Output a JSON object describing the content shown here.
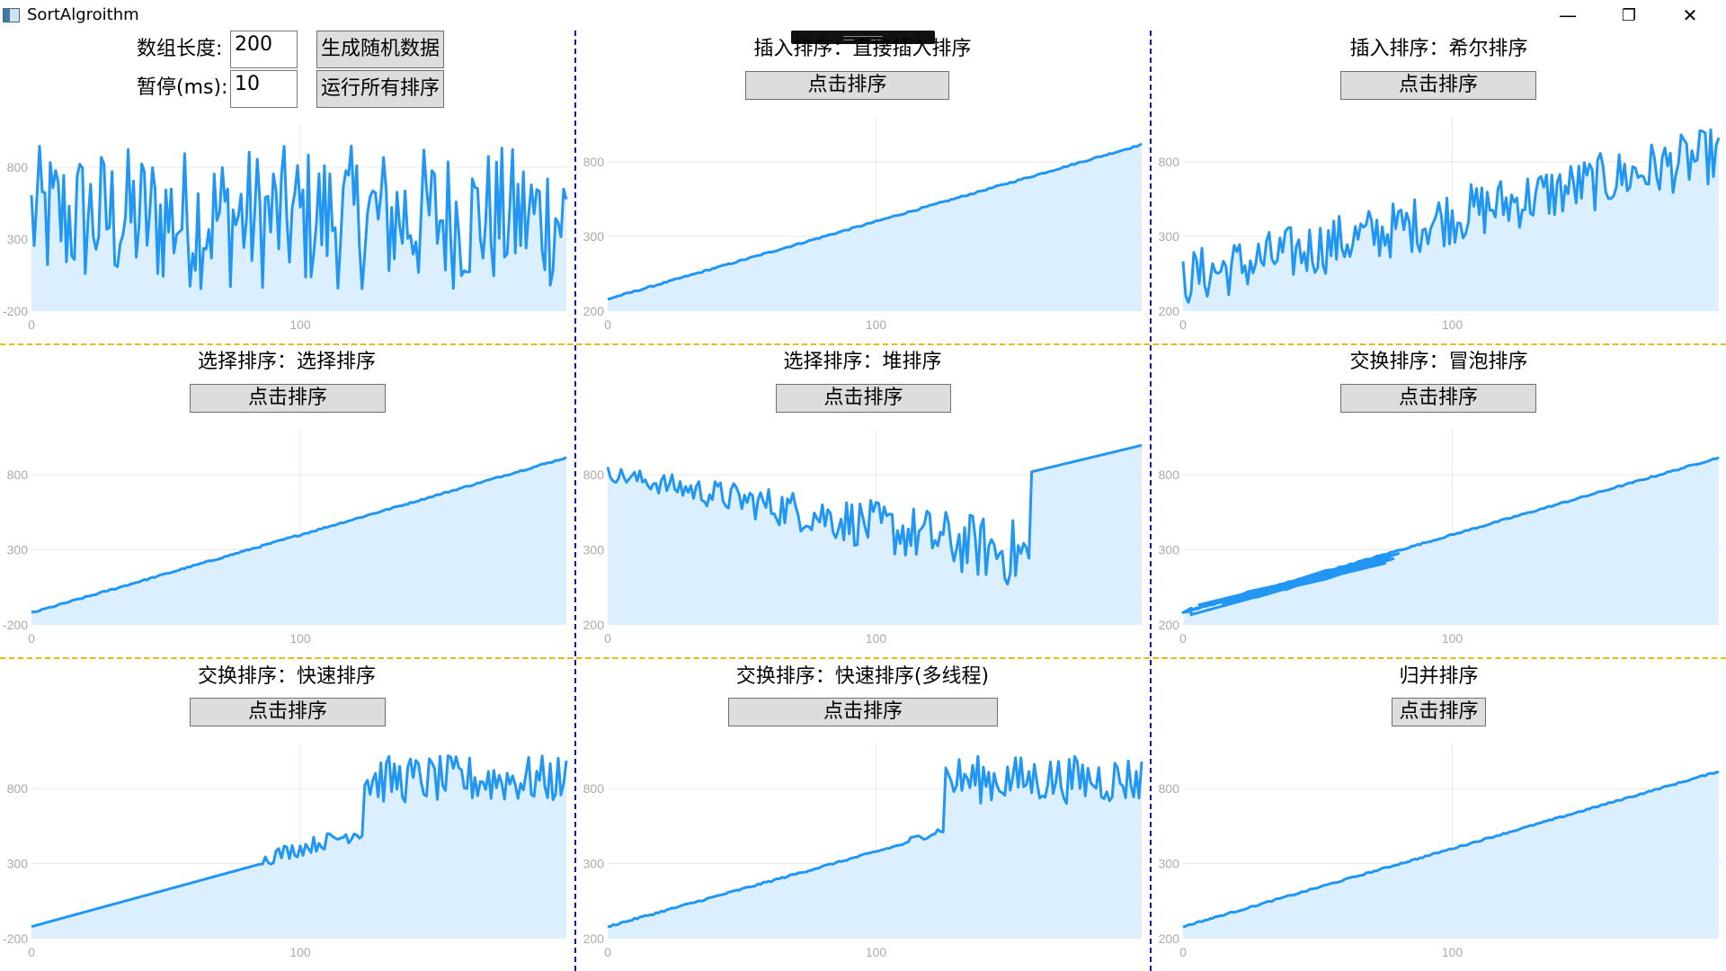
{
  "window": {
    "title": "SortAlgroithm",
    "minimize": "—",
    "restore": "❐",
    "close": "✕"
  },
  "controls": {
    "array_length_label": "数组长度:",
    "array_length_value": "200",
    "pause_label": "暂停(ms):",
    "pause_value": "10",
    "generate_button": "生成随机数据",
    "run_all_button": "运行所有排序"
  },
  "sort_button_label": "点击排序",
  "panels": [
    {
      "id": "random",
      "title": ""
    },
    {
      "id": "insertion",
      "title": "插入排序：直接插入排序"
    },
    {
      "id": "shell",
      "title": "插入排序：希尔排序"
    },
    {
      "id": "selection",
      "title": "选择排序：选择排序"
    },
    {
      "id": "heap",
      "title": "选择排序：堆排序"
    },
    {
      "id": "bubble",
      "title": "交换排序：冒泡排序"
    },
    {
      "id": "quick",
      "title": "交换排序：快速排序"
    },
    {
      "id": "quick_mt",
      "title": "交换排序：快速排序(多线程)"
    },
    {
      "id": "merge",
      "title": "归并排序"
    }
  ],
  "colors": {
    "line": "#2196f3",
    "fill": "#dcefff",
    "grid": "#e8e8e8",
    "axis_text": "#aaaaaa",
    "divider_blue": "#1010c8",
    "divider_yellow": "#e6c000"
  },
  "chart_data": [
    {
      "panel": "random",
      "type": "area",
      "series": "random",
      "ylabels": [
        "-200",
        "300",
        "800"
      ],
      "xlabels": [
        "0",
        "100"
      ],
      "ylim": [
        -200,
        1100
      ],
      "xlim": [
        0,
        200
      ]
    },
    {
      "panel": "insertion",
      "type": "area",
      "series": "sorted",
      "ylabels": [
        "200",
        "300",
        "800"
      ],
      "xlabels": [
        "0",
        "100"
      ],
      "ylim": [
        -200,
        1100
      ],
      "xlim": [
        0,
        200
      ]
    },
    {
      "panel": "shell",
      "type": "area",
      "series": "shell",
      "ylabels": [
        "200",
        "300",
        "800"
      ],
      "xlabels": [
        "0",
        "100"
      ],
      "ylim": [
        -200,
        1100
      ],
      "xlim": [
        0,
        200
      ]
    },
    {
      "panel": "selection",
      "type": "area",
      "series": "sorted",
      "ylabels": [
        "-200",
        "300",
        "800"
      ],
      "xlabels": [
        "0",
        "100"
      ],
      "ylim": [
        -200,
        1100
      ],
      "xlim": [
        0,
        200
      ]
    },
    {
      "panel": "heap",
      "type": "area",
      "series": "heap",
      "ylabels": [
        "200",
        "300",
        "800"
      ],
      "xlabels": [
        "0",
        "100"
      ],
      "ylim": [
        -200,
        1100
      ],
      "xlim": [
        0,
        200
      ]
    },
    {
      "panel": "bubble",
      "type": "area",
      "series": "bubble",
      "ylabels": [
        "200",
        "300",
        "800"
      ],
      "xlabels": [
        "0",
        "100"
      ],
      "ylim": [
        -200,
        1100
      ],
      "xlim": [
        0,
        200
      ]
    },
    {
      "panel": "quick",
      "type": "area",
      "series": "quick",
      "ylabels": [
        "-200",
        "300",
        "800"
      ],
      "xlabels": [
        "0",
        "100"
      ],
      "ylim": [
        -200,
        1100
      ],
      "xlim": [
        0,
        200
      ]
    },
    {
      "panel": "quick_mt",
      "type": "area",
      "series": "quick_mt",
      "ylabels": [
        "200",
        "300",
        "800"
      ],
      "xlabels": [
        "0",
        "100"
      ],
      "ylim": [
        -200,
        1100
      ],
      "xlim": [
        0,
        200
      ]
    },
    {
      "panel": "merge",
      "type": "area",
      "series": "sorted",
      "ylabels": [
        "200",
        "300",
        "800"
      ],
      "xlabels": [
        "0",
        "100"
      ],
      "ylim": [
        -200,
        1100
      ],
      "xlim": [
        0,
        200
      ]
    }
  ]
}
